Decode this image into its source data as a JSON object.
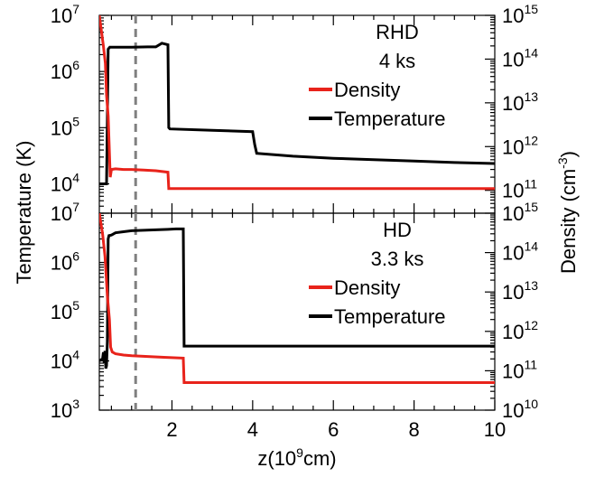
{
  "chart_data": [
    {
      "type": "line",
      "panel": "top",
      "panel_label_lines": [
        "RHD",
        "4 ks"
      ],
      "xlim": [
        0.2,
        10
      ],
      "left_axis": {
        "label": "Temperature (K)",
        "scale": "log",
        "lim": [
          3000,
          10000000
        ],
        "ticks": [
          10000,
          100000,
          1000000,
          10000000
        ],
        "tick_labels": [
          {
            "base": "10",
            "exp": "4"
          },
          {
            "base": "10",
            "exp": "5"
          },
          {
            "base": "10",
            "exp": "6"
          },
          {
            "base": "10",
            "exp": "7"
          }
        ]
      },
      "right_axis": {
        "label": "Density (cm-3)",
        "scale": "log",
        "lim": [
          30000000000,
          1000000000000000
        ],
        "ticks": [
          100000000000,
          1000000000000,
          10000000000000,
          100000000000000,
          1000000000000000
        ],
        "tick_labels": [
          {
            "base": "10",
            "exp": "11"
          },
          {
            "base": "10",
            "exp": "12"
          },
          {
            "base": "10",
            "exp": "13"
          },
          {
            "base": "10",
            "exp": "14"
          },
          {
            "base": "10",
            "exp": "15"
          }
        ]
      },
      "legend": [
        {
          "name": "Density",
          "color": "#e8231b"
        },
        {
          "name": "Temperature",
          "color": "#000000"
        }
      ],
      "series": [
        {
          "name": "Temperature",
          "axis": "left",
          "color": "#000000",
          "x": [
            0.2,
            0.38,
            0.39,
            0.42,
            0.46,
            0.5,
            1.0,
            1.4,
            1.6,
            1.75,
            1.9,
            1.92,
            1.95,
            3.0,
            4.0,
            4.05,
            4.1,
            5.0,
            6.0,
            7.0,
            8.0,
            9.0,
            10.0
          ],
          "y": [
            10000,
            10000,
            40000,
            2500000,
            2700000,
            2700000,
            2700000,
            2750000,
            2750000,
            3200000,
            3000000,
            100000,
            95000,
            90000,
            85000,
            50000,
            35000,
            31000,
            28500,
            27000,
            25500,
            24000,
            23000
          ]
        },
        {
          "name": "Density",
          "axis": "right",
          "color": "#e8231b",
          "x": [
            0.2,
            0.3,
            0.35,
            0.38,
            0.42,
            0.47,
            0.5,
            0.6,
            0.8,
            1.0,
            1.3,
            1.6,
            1.9,
            1.92,
            2.5,
            10.0
          ],
          "y": [
            1000000000000000,
            200000000000000,
            80000000000000,
            15000000000000,
            5000000000000,
            200000000000,
            300000000000,
            310000000000,
            300000000000,
            300000000000,
            290000000000,
            280000000000,
            260000000000,
            110000000000,
            110000000000,
            110000000000
          ]
        }
      ]
    },
    {
      "type": "line",
      "panel": "bottom",
      "panel_label_lines": [
        "HD",
        "3.3 ks"
      ],
      "xlim": [
        0.2,
        10
      ],
      "xlabel": {
        "pre": "z(10",
        "exp": "9",
        "post": "cm)"
      },
      "xticks": [
        2,
        4,
        6,
        8,
        10
      ],
      "xtick_labels": [
        "2",
        "4",
        "6",
        "8",
        "10"
      ],
      "left_axis": {
        "label": "Temperature (K)",
        "scale": "log",
        "lim": [
          1000,
          10000000
        ],
        "ticks": [
          1000,
          10000,
          100000,
          1000000,
          10000000
        ],
        "tick_labels": [
          {
            "base": "10",
            "exp": "3"
          },
          {
            "base": "10",
            "exp": "4"
          },
          {
            "base": "10",
            "exp": "5"
          },
          {
            "base": "10",
            "exp": "6"
          },
          {
            "base": "10",
            "exp": "7"
          }
        ]
      },
      "right_axis": {
        "label": "Density (cm-3)",
        "scale": "log",
        "lim": [
          10000000000,
          1000000000000000
        ],
        "ticks": [
          10000000000,
          100000000000,
          1000000000000,
          10000000000000,
          100000000000000,
          1000000000000000
        ],
        "tick_labels": [
          {
            "base": "10",
            "exp": "10"
          },
          {
            "base": "10",
            "exp": "11"
          },
          {
            "base": "10",
            "exp": "12"
          },
          {
            "base": "10",
            "exp": "13"
          },
          {
            "base": "10",
            "exp": "14"
          },
          {
            "base": "10",
            "exp": "15"
          }
        ]
      },
      "legend": [
        {
          "name": "Density",
          "color": "#e8231b"
        },
        {
          "name": "Temperature",
          "color": "#000000"
        }
      ],
      "series": [
        {
          "name": "Temperature",
          "axis": "left",
          "color": "#000000",
          "x": [
            0.2,
            0.28,
            0.3,
            0.32,
            0.34,
            0.36,
            0.38,
            0.4,
            0.42,
            0.44,
            0.5,
            0.6,
            0.8,
            1.0,
            1.3,
            1.6,
            1.9,
            2.1,
            2.28,
            2.3,
            2.35,
            4.0,
            6.0,
            8.0,
            10.0
          ],
          "y": [
            10000,
            11000,
            15000,
            9000,
            16000,
            7000,
            8000,
            25000,
            3000000,
            3500000,
            3600000,
            4000000,
            4200000,
            4400000,
            4500000,
            4600000,
            4700000,
            4800000,
            4800000,
            20000,
            20000,
            20000,
            20000,
            20000,
            20000
          ]
        },
        {
          "name": "Density",
          "axis": "right",
          "color": "#e8231b",
          "x": [
            0.2,
            0.28,
            0.34,
            0.4,
            0.45,
            0.48,
            0.52,
            0.6,
            0.8,
            1.0,
            1.4,
            1.8,
            2.28,
            2.3,
            3.0,
            10.0
          ],
          "y": [
            1000000000000000,
            300000000000000,
            80000000000000,
            8000000000000,
            2000000000000,
            400000000000,
            300000000000,
            270000000000,
            250000000000,
            240000000000,
            230000000000,
            220000000000,
            210000000000,
            50000000000,
            50000000000,
            50000000000
          ]
        }
      ]
    }
  ],
  "dashed_line": {
    "x": 1.1,
    "color": "#808080"
  }
}
